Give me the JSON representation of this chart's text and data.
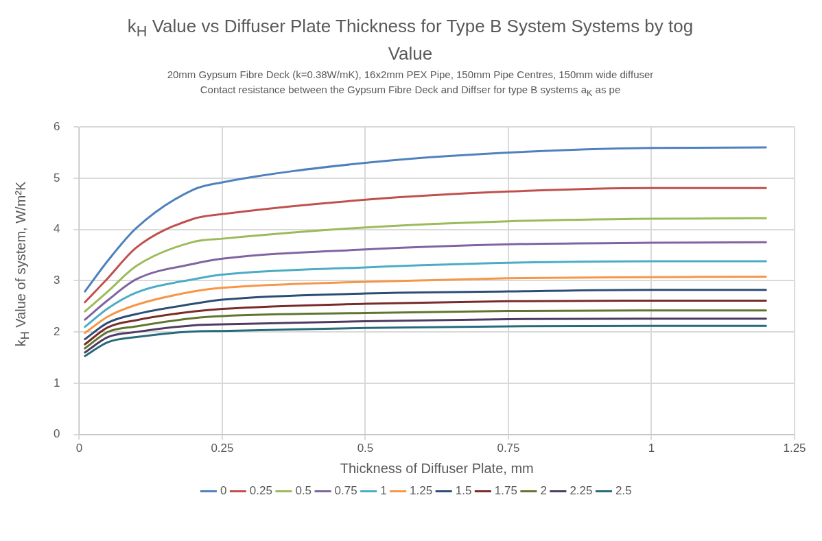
{
  "chart_data": {
    "type": "line",
    "title": "k$_{H}$ Value vs Diffuser Plate Thickness for Type B System Systems by tog Value",
    "subtitle": "20mm Gypsum Fibre Deck (k=0.38W/mK), 16x2mm PEX Pipe, 150mm Pipe Centres, 150mm wide diffuser\nContact resistance between the Gypsum Fibre Deck and Diffser for type B systems a$_{K}$ as pe",
    "xlabel": "Thickness of Diffuser Plate, mm",
    "ylabel": "k$_{H}$ Value of system, W/m²K",
    "x": [
      0.01,
      0.05,
      0.1,
      0.2,
      0.25,
      0.5,
      0.75,
      1,
      1.2
    ],
    "series": [
      {
        "name": "0",
        "color": "#4f81bd",
        "values": [
          2.79,
          3.39,
          4.03,
          4.78,
          4.92,
          5.3,
          5.5,
          5.59,
          5.6
        ]
      },
      {
        "name": "0.25",
        "color": "#c0504d",
        "values": [
          2.58,
          3.05,
          3.65,
          4.21,
          4.3,
          4.58,
          4.74,
          4.81,
          4.81
        ]
      },
      {
        "name": "0.5",
        "color": "#9bbb59",
        "values": [
          2.4,
          2.79,
          3.29,
          3.76,
          3.82,
          4.04,
          4.16,
          4.21,
          4.22
        ]
      },
      {
        "name": "0.75",
        "color": "#8064a2",
        "values": [
          2.24,
          2.62,
          3.03,
          3.33,
          3.43,
          3.61,
          3.71,
          3.74,
          3.75
        ]
      },
      {
        "name": "1",
        "color": "#4bacc6",
        "values": [
          2.1,
          2.46,
          2.77,
          3.03,
          3.12,
          3.26,
          3.35,
          3.38,
          3.38
        ]
      },
      {
        "name": "1.25",
        "color": "#f79646",
        "values": [
          1.98,
          2.3,
          2.53,
          2.79,
          2.86,
          2.98,
          3.05,
          3.07,
          3.08
        ]
      },
      {
        "name": "1.5",
        "color": "#2c4d75",
        "values": [
          1.86,
          2.18,
          2.35,
          2.55,
          2.63,
          2.75,
          2.79,
          2.82,
          2.82
        ]
      },
      {
        "name": "1.75",
        "color": "#772c2a",
        "values": [
          1.76,
          2.09,
          2.23,
          2.4,
          2.45,
          2.55,
          2.6,
          2.61,
          2.61
        ]
      },
      {
        "name": "2",
        "color": "#5f7530",
        "values": [
          1.68,
          2.0,
          2.11,
          2.27,
          2.31,
          2.37,
          2.41,
          2.42,
          2.42
        ]
      },
      {
        "name": "2.25",
        "color": "#4d3b62",
        "values": [
          1.6,
          1.9,
          2.0,
          2.13,
          2.15,
          2.21,
          2.25,
          2.26,
          2.26
        ]
      },
      {
        "name": "2.5",
        "color": "#276a7c",
        "values": [
          1.53,
          1.8,
          1.9,
          2.01,
          2.02,
          2.08,
          2.11,
          2.12,
          2.12
        ]
      }
    ],
    "xlim": [
      0,
      1.25
    ],
    "xticks": [
      0,
      0.25,
      0.5,
      0.75,
      1,
      1.25
    ],
    "ylim": [
      0,
      6
    ],
    "yticks": [
      0,
      1,
      2,
      3,
      4,
      5,
      6
    ],
    "grid": true,
    "legend": "bottom"
  }
}
